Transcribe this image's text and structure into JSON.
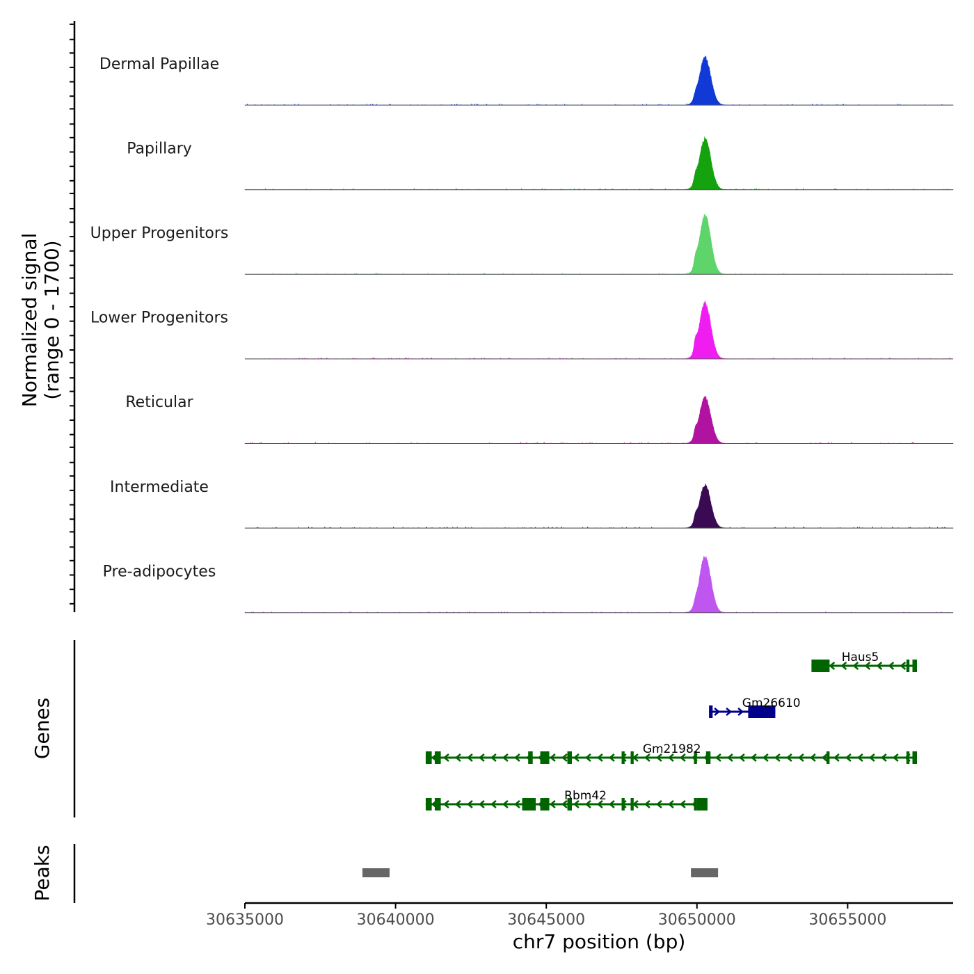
{
  "chart_data": {
    "type": "area",
    "title": "",
    "xlabel": "chr7 position (bp)",
    "ylabel_line1": "Normalized signal",
    "ylabel_line2": "(range 0 - 1700)",
    "y_range": [
      0,
      1700
    ],
    "x_range": [
      30635000,
      30658500
    ],
    "x_ticks": [
      30635000,
      30640000,
      30645000,
      30650000,
      30655000
    ],
    "x_tick_labels": [
      "30635000",
      "30640000",
      "30645000",
      "30650000",
      "30655000"
    ],
    "tracks": [
      {
        "name": "Dermal Papillae",
        "color": "#1139d6",
        "peak_max": 1450,
        "minor_peak": 100
      },
      {
        "name": "Papillary",
        "color": "#14a30e",
        "peak_max": 1550,
        "minor_peak": 180
      },
      {
        "name": "Upper Progenitors",
        "color": "#5ed46a",
        "peak_max": 1780,
        "minor_peak": 200
      },
      {
        "name": "Lower Progenitors",
        "color": "#f01df0",
        "peak_max": 1700,
        "minor_peak": 260
      },
      {
        "name": "Reticular",
        "color": "#b0139f",
        "peak_max": 1400,
        "minor_peak": 180
      },
      {
        "name": "Intermediate",
        "color": "#3a0a52",
        "peak_max": 1300,
        "minor_peak": 160
      },
      {
        "name": "Pre-adipocytes",
        "color": "#c056f0",
        "peak_max": 1700,
        "minor_peak": 100
      }
    ],
    "genes_label": "Genes",
    "genes": [
      {
        "name": "Haus5",
        "strand": "-",
        "start": 30653800,
        "end": 30657300,
        "row": 0,
        "color": "#006400",
        "label_pos": 30654800,
        "exons": [
          [
            30653800,
            30654400
          ],
          [
            30656950,
            30657050
          ],
          [
            30657150,
            30657300
          ]
        ]
      },
      {
        "name": "Gm26610",
        "strand": "+",
        "start": 30650400,
        "end": 30652600,
        "row": 1,
        "color": "#00008b",
        "label_pos": 30651500,
        "exons": [
          [
            30650400,
            30650520
          ],
          [
            30651700,
            30652600
          ]
        ]
      },
      {
        "name": "Gm21982",
        "strand": "-",
        "start": 30641000,
        "end": 30657300,
        "row": 2,
        "color": "#006400",
        "label_pos": 30648200,
        "exons": [
          [
            30641000,
            30641200
          ],
          [
            30641300,
            30641500
          ],
          [
            30644400,
            30644550
          ],
          [
            30644800,
            30645100
          ],
          [
            30645700,
            30645850
          ],
          [
            30647500,
            30647600
          ],
          [
            30647800,
            30647900
          ],
          [
            30649900,
            30650000
          ],
          [
            30650300,
            30650450
          ],
          [
            30654300,
            30654400
          ],
          [
            30656950,
            30657050
          ],
          [
            30657150,
            30657300
          ]
        ]
      },
      {
        "name": "Rbm42",
        "strand": "-",
        "start": 30641000,
        "end": 30650300,
        "row": 3,
        "color": "#006400",
        "label_pos": 30645600,
        "exons": [
          [
            30641000,
            30641200
          ],
          [
            30641300,
            30641500
          ],
          [
            30644200,
            30644650
          ],
          [
            30644800,
            30645100
          ],
          [
            30645700,
            30645850
          ],
          [
            30647500,
            30647600
          ],
          [
            30647800,
            30647900
          ],
          [
            30649900,
            30650000
          ],
          [
            30650000,
            30650350
          ]
        ]
      }
    ],
    "peaks_label": "Peaks",
    "peaks": [
      {
        "start": 30638900,
        "end": 30639800
      },
      {
        "start": 30649800,
        "end": 30650700
      }
    ],
    "peak_color": "#666666"
  }
}
